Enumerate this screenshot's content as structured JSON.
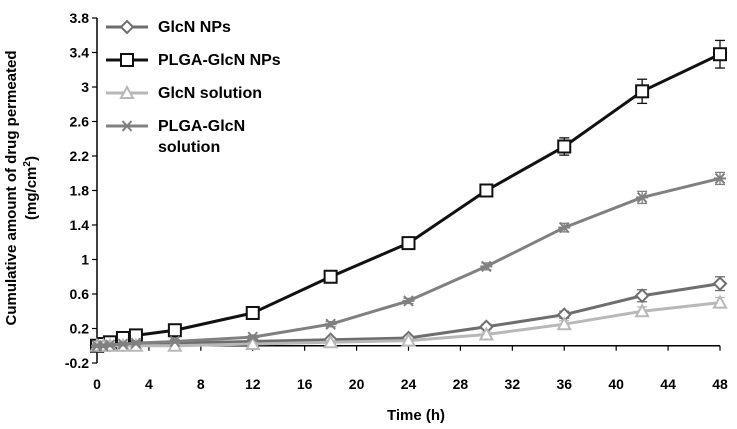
{
  "chart_data": {
    "type": "line",
    "title": "",
    "xlabel": "Time (h)",
    "ylabel_line1": "Cumulative amount of drug permeated",
    "ylabel_line2_prefix": "(mg/cm",
    "ylabel_line2_sup": "2",
    "ylabel_line2_suffix": ")",
    "xlim": [
      0,
      48
    ],
    "ylim": [
      -0.2,
      3.8
    ],
    "xticks": [
      0,
      4,
      8,
      12,
      16,
      20,
      24,
      28,
      32,
      36,
      40,
      44,
      48
    ],
    "yticks": [
      -0.2,
      0.2,
      0.6,
      1,
      1.4,
      1.8,
      2.2,
      2.6,
      3,
      3.4,
      3.8
    ],
    "ytick_labels": [
      "-0.2",
      "0.2",
      "0.6",
      "1",
      "1.4",
      "1.8",
      "2.2",
      "2.6",
      "3",
      "3.4",
      "3.8"
    ],
    "grid": false,
    "legend_position": "top-left",
    "x": [
      0,
      0.5,
      1,
      2,
      3,
      6,
      12,
      18,
      24,
      30,
      36,
      42,
      48
    ],
    "series": [
      {
        "name": "GlcN NPs",
        "color": "#6e6e6e",
        "marker": "diamond",
        "values": [
          0.0,
          0.0,
          0.01,
          0.01,
          0.02,
          0.03,
          0.05,
          0.07,
          0.09,
          0.22,
          0.36,
          0.58,
          0.72
        ],
        "errors": [
          0.02,
          0.02,
          0.02,
          0.02,
          0.02,
          0.02,
          0.02,
          0.02,
          0.02,
          0.03,
          0.04,
          0.07,
          0.08
        ]
      },
      {
        "name": "PLGA-GlcN NPs",
        "color": "#111111",
        "marker": "square",
        "values": [
          0.0,
          0.02,
          0.04,
          0.09,
          0.12,
          0.18,
          0.38,
          0.8,
          1.19,
          1.8,
          2.31,
          2.95,
          3.38
        ],
        "errors": [
          0.02,
          0.02,
          0.02,
          0.03,
          0.03,
          0.03,
          0.04,
          0.05,
          0.05,
          0.06,
          0.1,
          0.14,
          0.16
        ]
      },
      {
        "name": "GlcN solution",
        "color": "#b8b8b8",
        "marker": "triangle",
        "values": [
          0.0,
          0.0,
          0.0,
          0.0,
          0.0,
          0.0,
          0.02,
          0.04,
          0.06,
          0.13,
          0.25,
          0.4,
          0.5
        ],
        "errors": [
          0.02,
          0.02,
          0.02,
          0.02,
          0.02,
          0.02,
          0.02,
          0.02,
          0.02,
          0.03,
          0.04,
          0.05,
          0.06
        ]
      },
      {
        "name_line1": "PLGA-GlcN",
        "name_line2": "solution",
        "color": "#808080",
        "marker": "asterisk",
        "values": [
          0.0,
          0.0,
          0.01,
          0.02,
          0.03,
          0.05,
          0.1,
          0.25,
          0.52,
          0.92,
          1.37,
          1.72,
          1.94
        ],
        "errors": [
          0.02,
          0.02,
          0.02,
          0.02,
          0.02,
          0.02,
          0.02,
          0.03,
          0.03,
          0.04,
          0.05,
          0.07,
          0.07
        ]
      }
    ]
  }
}
